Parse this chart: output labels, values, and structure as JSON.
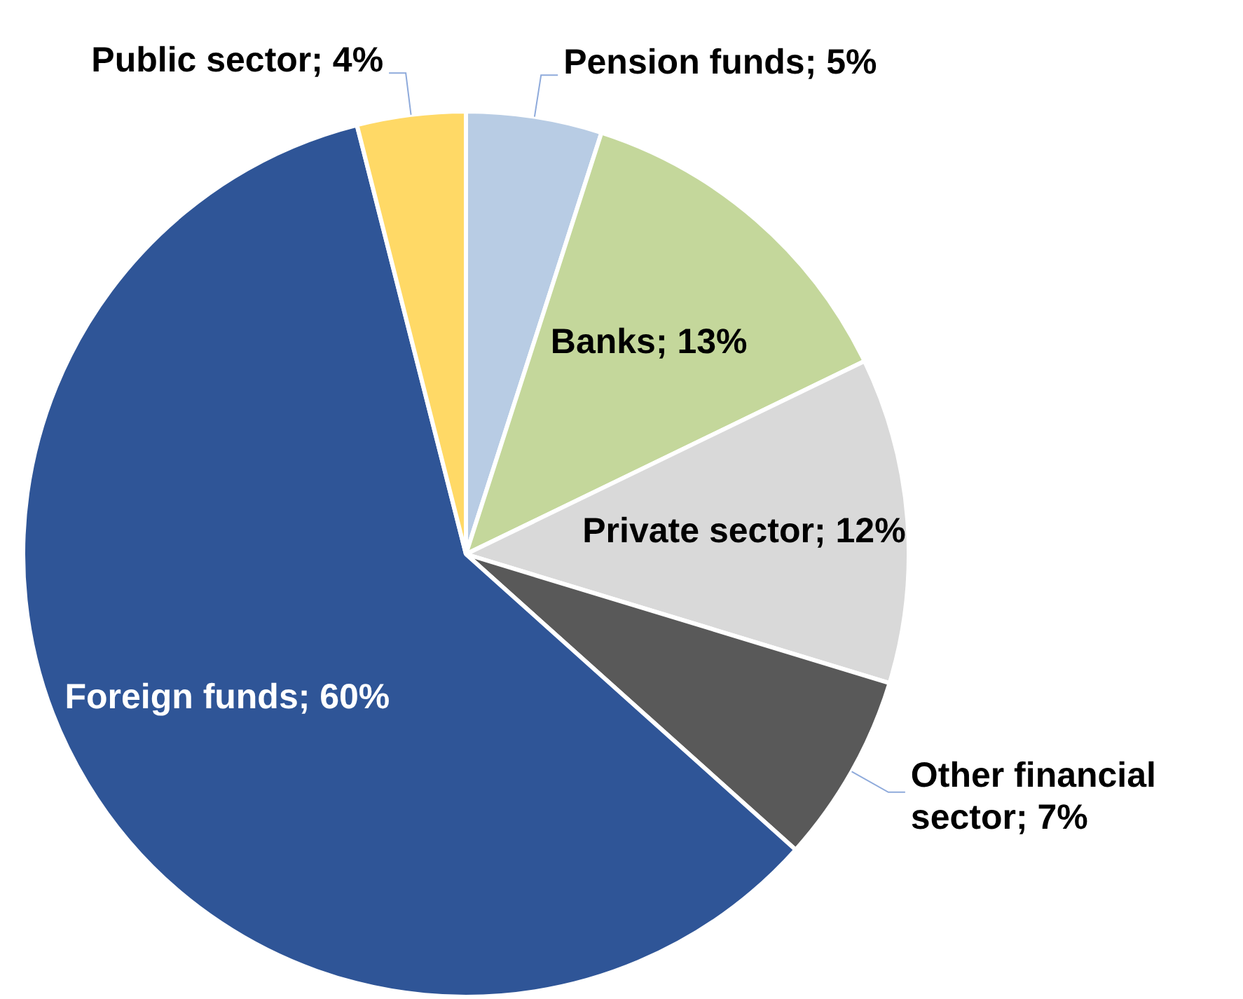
{
  "chart_data": {
    "type": "pie",
    "categories": [
      "Pension funds",
      "Banks",
      "Private sector",
      "Other financial sector",
      "Foreign funds",
      "Public sector"
    ],
    "values": [
      5,
      13,
      12,
      7,
      60,
      4
    ],
    "value_labels": [
      "5%",
      "13%",
      "12%",
      "7%",
      "60%",
      "4%"
    ],
    "colors": [
      "#b8cce4",
      "#c4d79b",
      "#d9d9d9",
      "#595959",
      "#2f5597",
      "#ffd966"
    ],
    "legend": false
  }
}
